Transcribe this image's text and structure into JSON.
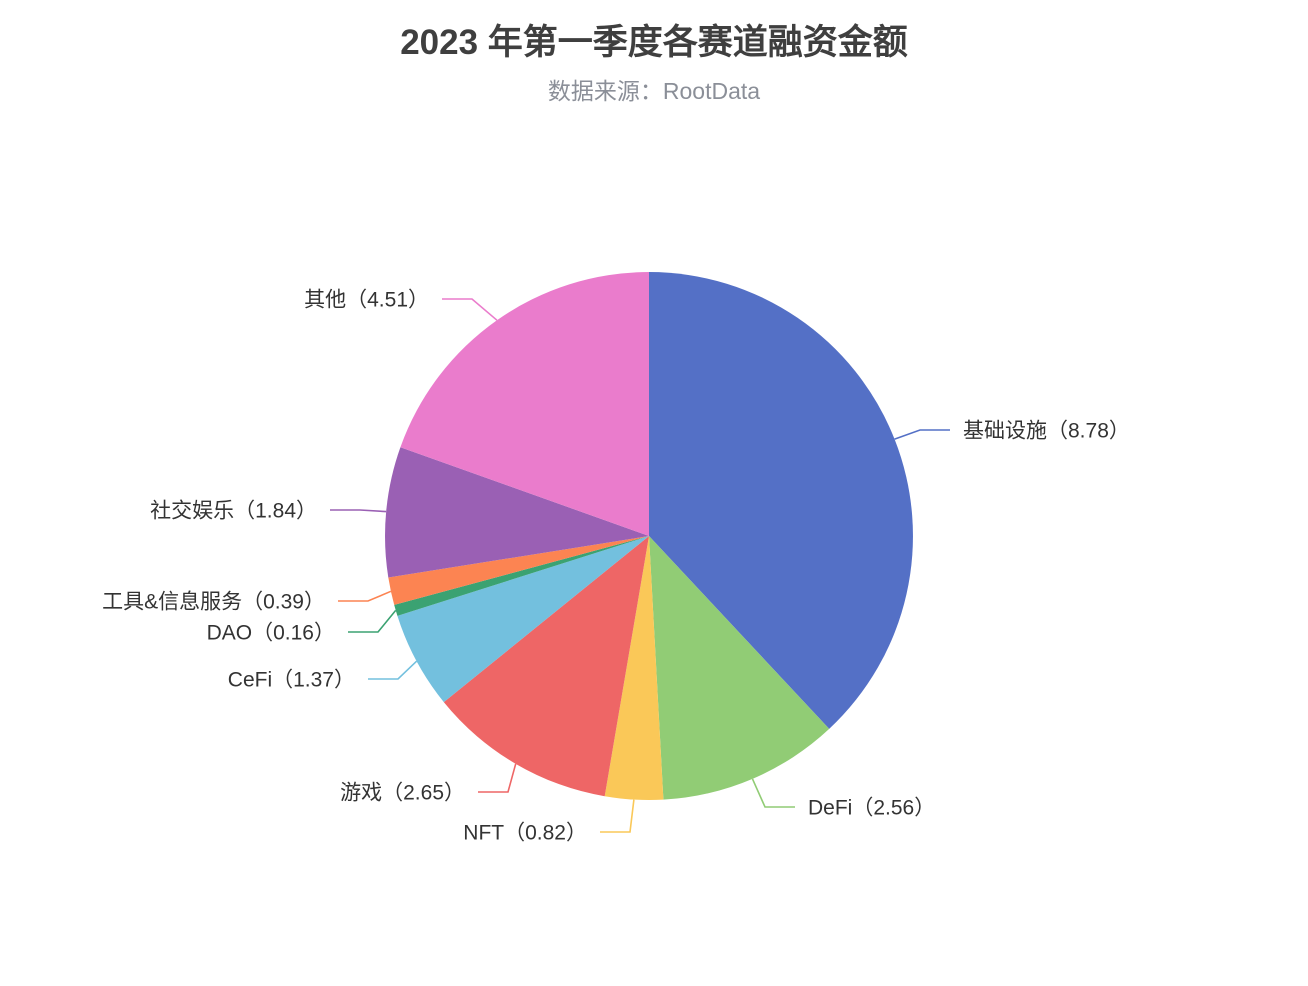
{
  "chart_data": {
    "type": "pie",
    "title": "2023 年第一季度各赛道融资金额",
    "subtitle": "数据来源：RootData",
    "legend_position": "none",
    "grid": false,
    "start_angle_deg_from_top": 0,
    "direction": "clockwise",
    "total": 23.08,
    "series": [
      {
        "name": "基础设施",
        "value": 8.78,
        "color": "#5470c6",
        "label": "基础设施（8.78）"
      },
      {
        "name": "DeFi",
        "value": 2.56,
        "color": "#91cc75",
        "label": "DeFi（2.56）"
      },
      {
        "name": "NFT",
        "value": 0.82,
        "color": "#fac858",
        "label": "NFT（0.82）"
      },
      {
        "name": "游戏",
        "value": 2.65,
        "color": "#ee6666",
        "label": "游戏（2.65）"
      },
      {
        "name": "CeFi",
        "value": 1.37,
        "color": "#73c0de",
        "label": "CeFi（1.37）"
      },
      {
        "name": "DAO",
        "value": 0.16,
        "color": "#3ba272",
        "label": "DAO（0.16）"
      },
      {
        "name": "工具&信息服务",
        "value": 0.39,
        "color": "#fc8452",
        "label": "工具&信息服务（0.39）"
      },
      {
        "name": "社交娱乐",
        "value": 1.84,
        "color": "#9a60b4",
        "label": "社交娱乐（1.84）"
      },
      {
        "name": "其他",
        "value": 4.51,
        "color": "#ea7ccc",
        "label": "其他（4.51）"
      }
    ],
    "palette": {
      "title_color": "#3f3f3f",
      "subtitle_color": "#8b8f98",
      "label_text_color": "#333333",
      "background": "#ffffff"
    }
  }
}
